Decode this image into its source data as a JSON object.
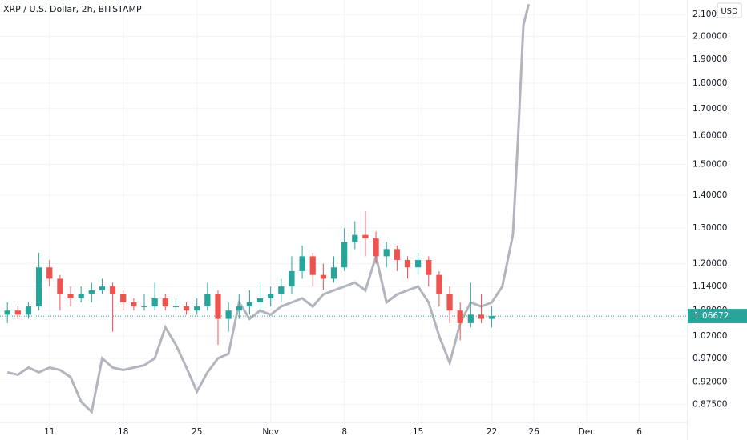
{
  "chart_data": {
    "type": "candlestick",
    "title": "XRP / U.S. Dollar, 2h, BITSTAMP",
    "currency": "USD",
    "log_scale": true,
    "grid": true,
    "up_color": "#26a69a",
    "down_color": "#ef5350",
    "compare_color": "#b2b5be",
    "xlim": [
      6.3,
      71.6
    ],
    "ylim": [
      0.84,
      2.17
    ],
    "xticks": [
      11,
      18,
      25,
      {
        "value": 32,
        "label": "Nov"
      },
      {
        "value": 39,
        "label": "8"
      },
      {
        "value": 46,
        "label": "15"
      },
      {
        "value": 53,
        "label": "22"
      },
      {
        "value": 57,
        "label": "26"
      },
      {
        "value": 62,
        "label": "Dec"
      },
      {
        "value": 67,
        "label": "6"
      }
    ],
    "yticks": [
      {
        "value": 0.875,
        "label": "0.87500"
      },
      {
        "value": 0.92,
        "label": "0.92000"
      },
      {
        "value": 0.97,
        "label": "0.97000"
      },
      {
        "value": 1.02,
        "label": "1.02000"
      },
      {
        "value": 1.08,
        "label": "1.08000"
      },
      {
        "value": 1.14,
        "label": "1.14000"
      },
      {
        "value": 1.2,
        "label": "1.20000"
      },
      {
        "value": 1.3,
        "label": "1.30000"
      },
      {
        "value": 1.4,
        "label": "1.40000"
      },
      {
        "value": 1.5,
        "label": "1.50000"
      },
      {
        "value": 1.6,
        "label": "1.60000"
      },
      {
        "value": 1.7,
        "label": "1.70000"
      },
      {
        "value": 1.8,
        "label": "1.80000"
      },
      {
        "value": 1.9,
        "label": "1.90000"
      },
      {
        "value": 2.0,
        "label": "2.00000"
      },
      {
        "value": 2.1,
        "label": "2.10000"
      }
    ],
    "x": [
      7,
      8,
      9,
      10,
      11,
      12,
      13,
      14,
      15,
      16,
      17,
      18,
      19,
      20,
      21,
      22,
      23,
      24,
      25,
      26,
      27,
      28,
      29,
      30,
      31,
      32,
      33,
      34,
      35,
      36,
      37,
      38,
      39,
      40,
      41,
      42,
      43,
      44,
      45,
      46,
      47,
      48,
      49,
      50,
      51,
      52,
      53
    ],
    "open": [
      1.07,
      1.08,
      1.07,
      1.09,
      1.19,
      1.16,
      1.12,
      1.11,
      1.12,
      1.13,
      1.14,
      1.12,
      1.1,
      1.09,
      1.09,
      1.11,
      1.09,
      1.09,
      1.08,
      1.09,
      1.12,
      1.06,
      1.08,
      1.09,
      1.1,
      1.11,
      1.12,
      1.14,
      1.18,
      1.22,
      1.17,
      1.16,
      1.19,
      1.26,
      1.28,
      1.27,
      1.22,
      1.24,
      1.21,
      1.19,
      1.21,
      1.17,
      1.12,
      1.08,
      1.05,
      1.07,
      1.06
    ],
    "high": [
      1.1,
      1.09,
      1.1,
      1.23,
      1.21,
      1.17,
      1.14,
      1.14,
      1.15,
      1.16,
      1.15,
      1.13,
      1.11,
      1.12,
      1.15,
      1.12,
      1.11,
      1.1,
      1.11,
      1.15,
      1.13,
      1.1,
      1.12,
      1.13,
      1.15,
      1.14,
      1.16,
      1.22,
      1.25,
      1.23,
      1.2,
      1.22,
      1.3,
      1.32,
      1.35,
      1.29,
      1.26,
      1.25,
      1.22,
      1.23,
      1.22,
      1.18,
      1.14,
      1.1,
      1.15,
      1.12,
      1.09
    ],
    "low": [
      1.05,
      1.06,
      1.06,
      1.08,
      1.14,
      1.08,
      1.09,
      1.1,
      1.1,
      1.12,
      1.03,
      1.08,
      1.08,
      1.08,
      1.08,
      1.08,
      1.08,
      1.07,
      1.07,
      1.08,
      1.0,
      1.03,
      1.06,
      1.07,
      1.08,
      1.09,
      1.1,
      1.12,
      1.16,
      1.14,
      1.13,
      1.15,
      1.18,
      1.24,
      1.22,
      1.2,
      1.19,
      1.18,
      1.16,
      1.17,
      1.14,
      1.09,
      1.05,
      1.01,
      1.04,
      1.05,
      1.04
    ],
    "close": [
      1.08,
      1.07,
      1.09,
      1.19,
      1.16,
      1.12,
      1.11,
      1.12,
      1.13,
      1.14,
      1.12,
      1.1,
      1.09,
      1.09,
      1.11,
      1.09,
      1.09,
      1.08,
      1.09,
      1.12,
      1.06,
      1.08,
      1.09,
      1.1,
      1.11,
      1.12,
      1.14,
      1.18,
      1.22,
      1.17,
      1.16,
      1.19,
      1.26,
      1.28,
      1.27,
      1.22,
      1.24,
      1.21,
      1.19,
      1.21,
      1.17,
      1.12,
      1.08,
      1.05,
      1.07,
      1.06,
      1.06672
    ],
    "compare": {
      "x": [
        7,
        8,
        9,
        10,
        11,
        12,
        13,
        14,
        15,
        16,
        17,
        18,
        19,
        20,
        21,
        22,
        23,
        24,
        25,
        26,
        27,
        28,
        29,
        30,
        31,
        32,
        33,
        34,
        35,
        36,
        37,
        38,
        39,
        40,
        41,
        42,
        43,
        44,
        45,
        46,
        47,
        48,
        49,
        50,
        51,
        52,
        53,
        54,
        55,
        55.5,
        56,
        56.5
      ],
      "values": [
        0.94,
        0.935,
        0.95,
        0.94,
        0.95,
        0.945,
        0.93,
        0.88,
        0.86,
        0.97,
        0.95,
        0.945,
        0.95,
        0.955,
        0.97,
        1.04,
        1.0,
        0.95,
        0.9,
        0.94,
        0.97,
        0.98,
        1.1,
        1.06,
        1.08,
        1.07,
        1.09,
        1.1,
        1.11,
        1.09,
        1.12,
        1.13,
        1.14,
        1.15,
        1.13,
        1.22,
        1.1,
        1.12,
        1.13,
        1.14,
        1.1,
        1.02,
        0.96,
        1.05,
        1.1,
        1.09,
        1.1,
        1.14,
        1.28,
        1.6,
        2.05,
        2.15
      ]
    }
  }
}
